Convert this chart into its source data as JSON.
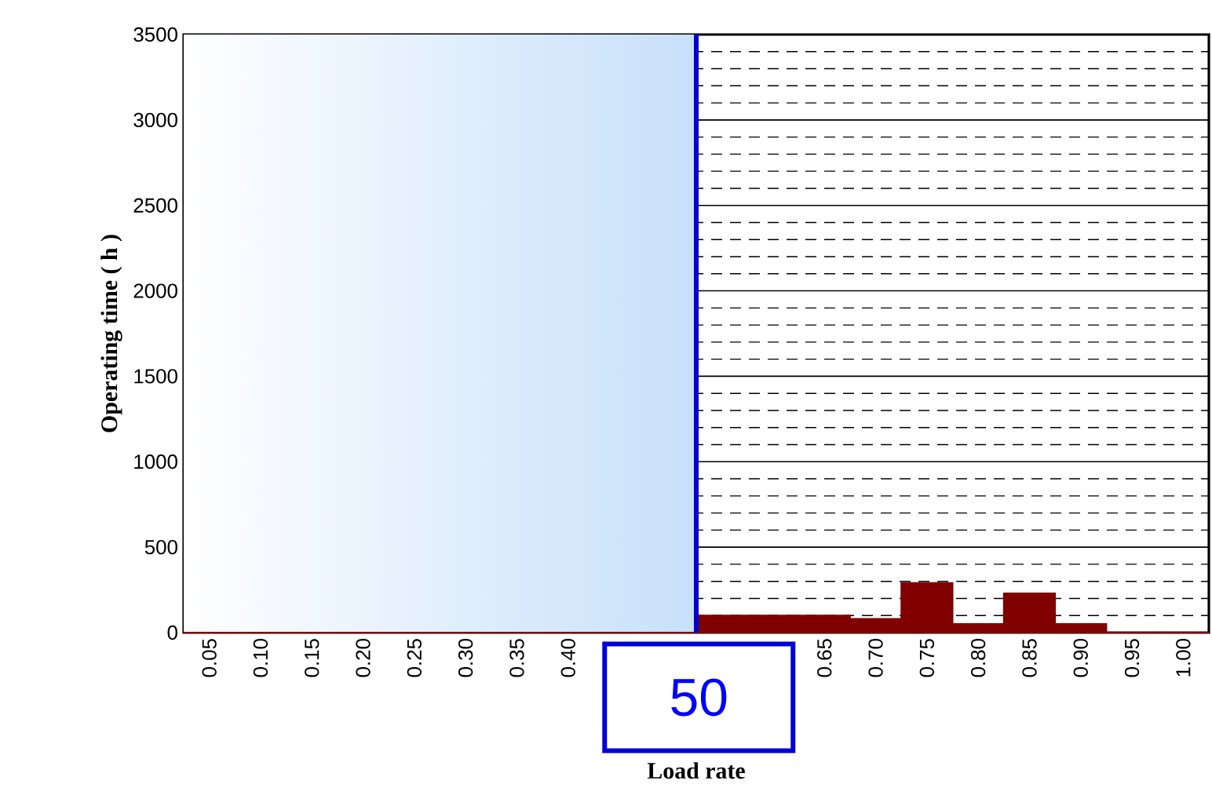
{
  "chart_data": {
    "type": "bar",
    "xlabel": "Load rate",
    "ylabel": "Operating time ( h )",
    "x": [
      0.05,
      0.1,
      0.15,
      0.2,
      0.25,
      0.3,
      0.35,
      0.4,
      0.45,
      0.5,
      0.55,
      0.6,
      0.65,
      0.7,
      0.75,
      0.8,
      0.85,
      0.9,
      0.95,
      1.0
    ],
    "values": [
      0,
      0,
      0,
      0,
      0,
      0,
      0,
      0,
      0,
      0,
      100,
      100,
      100,
      80,
      290,
      50,
      230,
      50,
      0,
      0
    ],
    "color": "#800000",
    "xlim": [
      0.025,
      1.025
    ],
    "xticks": [
      {
        "value": 0.05,
        "label": "0.05"
      },
      {
        "value": 0.1,
        "label": "0.10"
      },
      {
        "value": 0.15,
        "label": "0.15"
      },
      {
        "value": 0.2,
        "label": "0.20"
      },
      {
        "value": 0.25,
        "label": "0.25"
      },
      {
        "value": 0.3,
        "label": "0.30"
      },
      {
        "value": 0.35,
        "label": "0.35"
      },
      {
        "value": 0.4,
        "label": "0.40"
      },
      {
        "value": 0.65,
        "label": "0.65"
      },
      {
        "value": 0.7,
        "label": "0.70"
      },
      {
        "value": 0.75,
        "label": "0.75"
      },
      {
        "value": 0.8,
        "label": "0.80"
      },
      {
        "value": 0.85,
        "label": "0.85"
      },
      {
        "value": 0.9,
        "label": "0.90"
      },
      {
        "value": 0.95,
        "label": "0.95"
      },
      {
        "value": 1.0,
        "label": "1.00"
      }
    ],
    "ylim": [
      0,
      3500
    ],
    "yticks": [
      0,
      500,
      1000,
      1500,
      2000,
      2500,
      3000,
      3500
    ],
    "grid": "y",
    "bands": [
      {
        "axis": "x",
        "from": 0.025,
        "to": 0.525,
        "color": "#c8e0fa"
      }
    ],
    "ref_lines": [
      {
        "axis": "x",
        "value": 0.525,
        "color": "#0000cc"
      }
    ],
    "annotations": [
      "50"
    ]
  }
}
